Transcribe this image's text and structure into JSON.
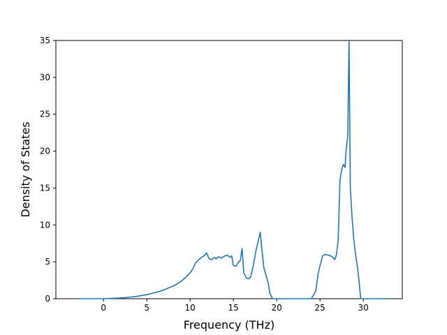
{
  "chart_data": {
    "type": "line",
    "title": "",
    "xlabel": "Frequency (THz)",
    "ylabel": "Density of States",
    "xlim": [
      -5.5,
      34.5
    ],
    "ylim": [
      0,
      35
    ],
    "xticks": [
      0,
      5,
      10,
      15,
      20,
      25,
      30
    ],
    "yticks": [
      0,
      5,
      10,
      15,
      20,
      25,
      30,
      35
    ],
    "grid": false,
    "line_color": "#1f77b4",
    "series": [
      {
        "x": [
          -3.0,
          -2.0,
          -1.0,
          0.0,
          1.0,
          2.0,
          3.0,
          4.0,
          5.0,
          5.5,
          6.0,
          6.5,
          7.0,
          7.5,
          8.0,
          8.5,
          9.0,
          9.5,
          10.0,
          10.3,
          10.6,
          11.0,
          11.3,
          11.6,
          11.9,
          12.2,
          12.5,
          12.8,
          13.0,
          13.3,
          13.6,
          14.0,
          14.3,
          14.6,
          14.8,
          15.0,
          15.3,
          15.6,
          15.8,
          16.0,
          16.2,
          16.5,
          16.8,
          17.0,
          17.3,
          17.6,
          17.9,
          18.1,
          18.3,
          18.5,
          18.8,
          19.0,
          19.2,
          19.5,
          20.0,
          21.0,
          22.0,
          23.0,
          24.0,
          24.5,
          24.8,
          25.0,
          25.3,
          25.6,
          26.0,
          26.4,
          26.7,
          26.9,
          27.1,
          27.3,
          27.5,
          27.7,
          27.9,
          28.0,
          28.2,
          28.35,
          28.5,
          28.7,
          28.9,
          29.1,
          29.3,
          29.5,
          29.7,
          30.0,
          31.0,
          32.0,
          32.8
        ],
        "y": [
          0.0,
          0.0,
          0.0,
          0.0,
          0.05,
          0.1,
          0.2,
          0.35,
          0.55,
          0.7,
          0.85,
          1.0,
          1.2,
          1.45,
          1.7,
          2.0,
          2.4,
          2.9,
          3.5,
          4.0,
          4.8,
          5.3,
          5.6,
          5.8,
          6.2,
          5.4,
          5.3,
          5.6,
          5.4,
          5.7,
          5.5,
          5.8,
          5.9,
          5.6,
          5.8,
          4.5,
          4.4,
          5.0,
          5.2,
          6.8,
          3.5,
          2.8,
          2.7,
          3.0,
          4.5,
          6.5,
          8.0,
          9.0,
          6.5,
          4.3,
          3.0,
          2.2,
          0.8,
          0.0,
          0.0,
          0.0,
          0.0,
          0.0,
          0.0,
          1.0,
          3.5,
          4.5,
          5.8,
          6.0,
          5.9,
          5.7,
          5.3,
          6.0,
          8.0,
          16.0,
          17.5,
          18.2,
          17.8,
          20.0,
          22.0,
          35.0,
          15.0,
          11.0,
          8.0,
          6.0,
          4.5,
          2.5,
          0.0,
          0.0,
          0.0,
          0.0,
          0.0
        ]
      }
    ]
  }
}
